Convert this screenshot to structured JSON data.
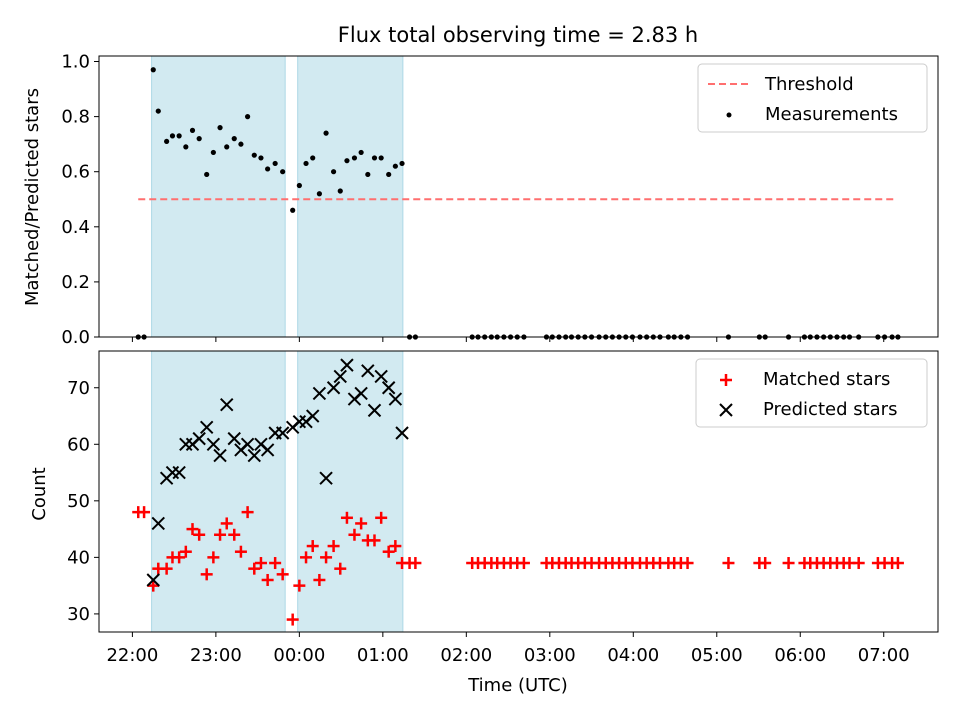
{
  "title": "Flux total observing time = 2.83 h",
  "colors": {
    "threshold": "#ff6f6f",
    "measurement": "#000000",
    "matched": "#ff0000",
    "predicted": "#000000",
    "shade": "#add8e6"
  },
  "chart_data": [
    {
      "type": "scatter",
      "ylabel": "Matched/Predicted stars",
      "xlabel": "",
      "xlim": [
        21.6,
        31.65
      ],
      "ylim": [
        0.0,
        1.02
      ],
      "yticks": [
        0.0,
        0.2,
        0.4,
        0.6,
        0.8,
        1.0
      ],
      "ytick_labels": [
        "0.0",
        "0.2",
        "0.4",
        "0.6",
        "0.8",
        "1.0"
      ],
      "shaded_intervals": [
        [
          22.23,
          23.83
        ],
        [
          23.98,
          25.24
        ]
      ],
      "threshold": {
        "value": 0.5,
        "x_range": [
          22.07,
          31.13
        ]
      },
      "legend": {
        "position": "top-right",
        "entries": [
          "Threshold",
          "Measurements"
        ]
      },
      "series": [
        {
          "name": "Measurements",
          "x": [
            22.07,
            22.14,
            22.25,
            22.31,
            22.41,
            22.48,
            22.56,
            22.64,
            22.72,
            22.8,
            22.89,
            22.97,
            23.05,
            23.13,
            23.22,
            23.3,
            23.38,
            23.46,
            23.54,
            23.62,
            23.71,
            23.8,
            23.92,
            24.0,
            24.08,
            24.16,
            24.24,
            24.32,
            24.41,
            24.49,
            24.57,
            24.66,
            24.74,
            24.82,
            24.9,
            24.98,
            25.07,
            25.15,
            25.23,
            25.32,
            25.39,
            26.07,
            26.14,
            26.22,
            26.3,
            26.37,
            26.45,
            26.53,
            26.61,
            26.69,
            26.96,
            27.03,
            27.11,
            27.19,
            27.26,
            27.34,
            27.42,
            27.5,
            27.59,
            27.67,
            27.75,
            27.83,
            27.91,
            27.99,
            28.08,
            28.16,
            28.24,
            28.32,
            28.42,
            28.49,
            28.57,
            28.65,
            29.14,
            29.51,
            29.58,
            29.86,
            30.05,
            30.12,
            30.2,
            30.28,
            30.36,
            30.44,
            30.52,
            30.59,
            30.7,
            30.93,
            31.01,
            31.1,
            31.17
          ],
          "y": [
            0.0,
            0.0,
            0.97,
            0.82,
            0.71,
            0.73,
            0.73,
            0.69,
            0.75,
            0.72,
            0.59,
            0.67,
            0.76,
            0.69,
            0.72,
            0.7,
            0.8,
            0.66,
            0.65,
            0.61,
            0.63,
            0.6,
            0.46,
            0.55,
            0.63,
            0.65,
            0.52,
            0.74,
            0.6,
            0.53,
            0.64,
            0.65,
            0.67,
            0.59,
            0.65,
            0.65,
            0.59,
            0.62,
            0.63,
            0.0,
            0.0,
            0.0,
            0.0,
            0.0,
            0.0,
            0.0,
            0.0,
            0.0,
            0.0,
            0.0,
            0.0,
            0.0,
            0.0,
            0.0,
            0.0,
            0.0,
            0.0,
            0.0,
            0.0,
            0.0,
            0.0,
            0.0,
            0.0,
            0.0,
            0.0,
            0.0,
            0.0,
            0.0,
            0.0,
            0.0,
            0.0,
            0.0,
            0.0,
            0.0,
            0.0,
            0.0,
            0.0,
            0.0,
            0.0,
            0.0,
            0.0,
            0.0,
            0.0,
            0.0,
            0.0,
            0.0,
            0.0,
            0.0,
            0.0
          ]
        }
      ]
    },
    {
      "type": "scatter",
      "ylabel": "Count",
      "xlabel": "Time (UTC)",
      "xlim": [
        21.6,
        31.65
      ],
      "ylim": [
        26.8,
        76.5
      ],
      "yticks": [
        30,
        40,
        50,
        60,
        70
      ],
      "ytick_labels": [
        "30",
        "40",
        "50",
        "60",
        "70"
      ],
      "xticks": [
        22,
        23,
        24,
        25,
        26,
        27,
        28,
        29,
        30,
        31
      ],
      "xtick_labels": [
        "22:00",
        "23:00",
        "00:00",
        "01:00",
        "02:00",
        "03:00",
        "04:00",
        "05:00",
        "06:00",
        "07:00"
      ],
      "shaded_intervals": [
        [
          22.23,
          23.83
        ],
        [
          23.98,
          25.24
        ]
      ],
      "legend": {
        "position": "top-right",
        "entries": [
          "Matched stars",
          "Predicted stars"
        ]
      },
      "series": [
        {
          "name": "Matched stars",
          "marker": "+",
          "x": [
            22.07,
            22.14,
            22.25,
            22.31,
            22.41,
            22.48,
            22.56,
            22.64,
            22.72,
            22.8,
            22.89,
            22.97,
            23.05,
            23.13,
            23.22,
            23.3,
            23.38,
            23.46,
            23.54,
            23.62,
            23.71,
            23.8,
            23.92,
            24.0,
            24.08,
            24.16,
            24.24,
            24.32,
            24.41,
            24.49,
            24.57,
            24.66,
            24.74,
            24.82,
            24.9,
            24.98,
            25.07,
            25.15,
            25.23,
            25.32,
            25.39,
            26.07,
            26.14,
            26.22,
            26.3,
            26.37,
            26.45,
            26.53,
            26.61,
            26.69,
            26.96,
            27.03,
            27.11,
            27.19,
            27.26,
            27.34,
            27.42,
            27.5,
            27.59,
            27.67,
            27.75,
            27.83,
            27.91,
            27.99,
            28.08,
            28.16,
            28.24,
            28.32,
            28.42,
            28.49,
            28.57,
            28.65,
            29.14,
            29.51,
            29.58,
            29.86,
            30.05,
            30.12,
            30.2,
            30.28,
            30.36,
            30.44,
            30.52,
            30.59,
            30.7,
            30.93,
            31.01,
            31.1,
            31.17
          ],
          "y": [
            48,
            48,
            35,
            38,
            38,
            40,
            40,
            41,
            45,
            44,
            37,
            40,
            44,
            46,
            44,
            41,
            48,
            38,
            39,
            36,
            39,
            37,
            29,
            35,
            40,
            42,
            36,
            40,
            42,
            38,
            47,
            44,
            46,
            43,
            43,
            47,
            41,
            42,
            39,
            39,
            39,
            39,
            39,
            39,
            39,
            39,
            39,
            39,
            39,
            39,
            39,
            39,
            39,
            39,
            39,
            39,
            39,
            39,
            39,
            39,
            39,
            39,
            39,
            39,
            39,
            39,
            39,
            39,
            39,
            39,
            39,
            39,
            39,
            39,
            39,
            39,
            39,
            39,
            39,
            39,
            39,
            39,
            39,
            39,
            39,
            39,
            39,
            39,
            39
          ]
        },
        {
          "name": "Predicted stars",
          "marker": "x",
          "x": [
            22.25,
            22.31,
            22.41,
            22.48,
            22.56,
            22.64,
            22.72,
            22.8,
            22.89,
            22.97,
            23.05,
            23.13,
            23.22,
            23.3,
            23.38,
            23.46,
            23.54,
            23.62,
            23.71,
            23.8,
            23.92,
            24.0,
            24.08,
            24.16,
            24.24,
            24.32,
            24.41,
            24.49,
            24.57,
            24.66,
            24.74,
            24.82,
            24.9,
            24.98,
            25.07,
            25.15,
            25.23
          ],
          "y": [
            36,
            46,
            54,
            55,
            55,
            60,
            60,
            61,
            63,
            60,
            58,
            67,
            61,
            59,
            60,
            58,
            60,
            59,
            62,
            62,
            63,
            64,
            64,
            65,
            69,
            54,
            70,
            72,
            74,
            68,
            69,
            73,
            66,
            72,
            70,
            68,
            62
          ]
        }
      ]
    }
  ]
}
